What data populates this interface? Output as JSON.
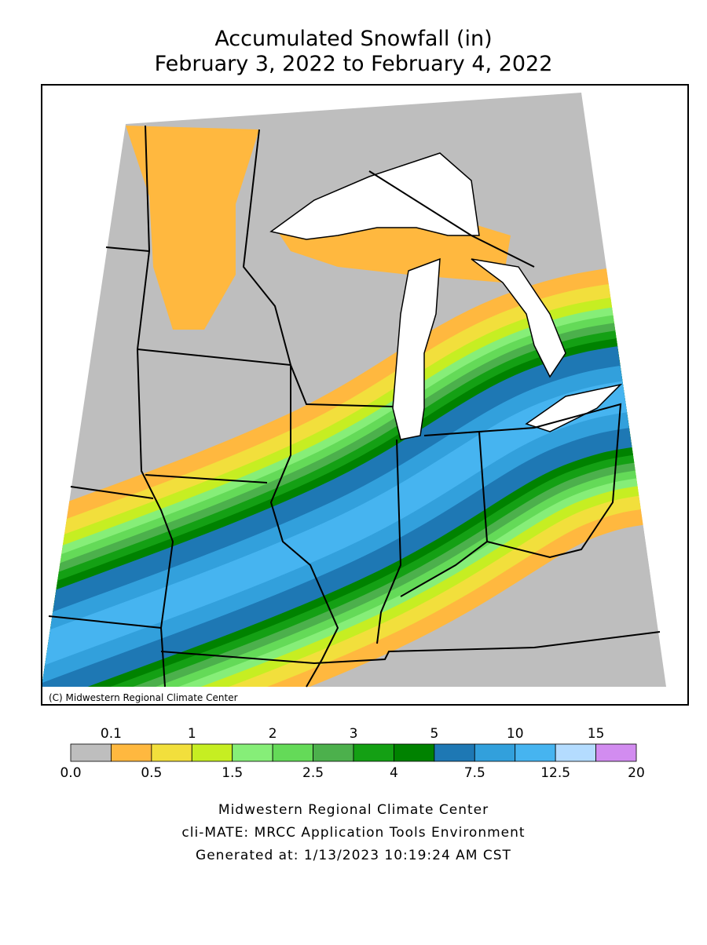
{
  "title": "Accumulated Snowfall (in)",
  "subtitle": "February 3, 2022 to February 4, 2022",
  "copyright": "(C) Midwestern Regional Climate Center",
  "legend": {
    "levels": [
      {
        "value": 0,
        "label": "0.0"
      },
      0.1,
      0.5,
      1,
      1.5,
      2,
      2.5,
      3,
      4,
      5,
      7.5,
      10,
      12.5,
      15,
      20
    ],
    "colors": [
      "#bebebe",
      "#ffb83f",
      "#f2df3c",
      "#c6ee22",
      "#86ee78",
      "#64da58",
      "#4cb04c",
      "#14a014",
      "#008200",
      "#1e78b4",
      "#32a0dc",
      "#46b4f0",
      "#b4dcff",
      "#d28cf0"
    ]
  },
  "footer": [
    "Midwestern Regional Climate Center",
    "cli-MATE: MRCC Application Tools Environment",
    "Generated at: 1/13/2023 10:19:24 AM CST"
  ]
}
